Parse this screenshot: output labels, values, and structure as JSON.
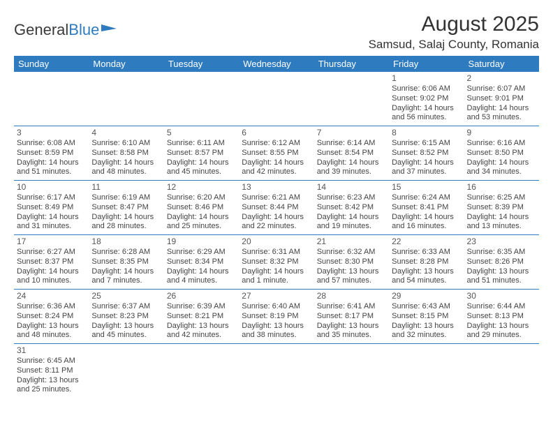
{
  "brand": {
    "part1": "General",
    "part2": "Blue"
  },
  "title": "August 2025",
  "location": "Samsud, Salaj County, Romania",
  "colors": {
    "header_bg": "#2f7bbf",
    "header_text": "#ffffff",
    "border": "#2f7bbf"
  },
  "day_headers": [
    "Sunday",
    "Monday",
    "Tuesday",
    "Wednesday",
    "Thursday",
    "Friday",
    "Saturday"
  ],
  "weeks": [
    [
      null,
      null,
      null,
      null,
      null,
      {
        "n": "1",
        "sunrise": "Sunrise: 6:06 AM",
        "sunset": "Sunset: 9:02 PM",
        "day1": "Daylight: 14 hours",
        "day2": "and 56 minutes."
      },
      {
        "n": "2",
        "sunrise": "Sunrise: 6:07 AM",
        "sunset": "Sunset: 9:01 PM",
        "day1": "Daylight: 14 hours",
        "day2": "and 53 minutes."
      }
    ],
    [
      {
        "n": "3",
        "sunrise": "Sunrise: 6:08 AM",
        "sunset": "Sunset: 8:59 PM",
        "day1": "Daylight: 14 hours",
        "day2": "and 51 minutes."
      },
      {
        "n": "4",
        "sunrise": "Sunrise: 6:10 AM",
        "sunset": "Sunset: 8:58 PM",
        "day1": "Daylight: 14 hours",
        "day2": "and 48 minutes."
      },
      {
        "n": "5",
        "sunrise": "Sunrise: 6:11 AM",
        "sunset": "Sunset: 8:57 PM",
        "day1": "Daylight: 14 hours",
        "day2": "and 45 minutes."
      },
      {
        "n": "6",
        "sunrise": "Sunrise: 6:12 AM",
        "sunset": "Sunset: 8:55 PM",
        "day1": "Daylight: 14 hours",
        "day2": "and 42 minutes."
      },
      {
        "n": "7",
        "sunrise": "Sunrise: 6:14 AM",
        "sunset": "Sunset: 8:54 PM",
        "day1": "Daylight: 14 hours",
        "day2": "and 39 minutes."
      },
      {
        "n": "8",
        "sunrise": "Sunrise: 6:15 AM",
        "sunset": "Sunset: 8:52 PM",
        "day1": "Daylight: 14 hours",
        "day2": "and 37 minutes."
      },
      {
        "n": "9",
        "sunrise": "Sunrise: 6:16 AM",
        "sunset": "Sunset: 8:50 PM",
        "day1": "Daylight: 14 hours",
        "day2": "and 34 minutes."
      }
    ],
    [
      {
        "n": "10",
        "sunrise": "Sunrise: 6:17 AM",
        "sunset": "Sunset: 8:49 PM",
        "day1": "Daylight: 14 hours",
        "day2": "and 31 minutes."
      },
      {
        "n": "11",
        "sunrise": "Sunrise: 6:19 AM",
        "sunset": "Sunset: 8:47 PM",
        "day1": "Daylight: 14 hours",
        "day2": "and 28 minutes."
      },
      {
        "n": "12",
        "sunrise": "Sunrise: 6:20 AM",
        "sunset": "Sunset: 8:46 PM",
        "day1": "Daylight: 14 hours",
        "day2": "and 25 minutes."
      },
      {
        "n": "13",
        "sunrise": "Sunrise: 6:21 AM",
        "sunset": "Sunset: 8:44 PM",
        "day1": "Daylight: 14 hours",
        "day2": "and 22 minutes."
      },
      {
        "n": "14",
        "sunrise": "Sunrise: 6:23 AM",
        "sunset": "Sunset: 8:42 PM",
        "day1": "Daylight: 14 hours",
        "day2": "and 19 minutes."
      },
      {
        "n": "15",
        "sunrise": "Sunrise: 6:24 AM",
        "sunset": "Sunset: 8:41 PM",
        "day1": "Daylight: 14 hours",
        "day2": "and 16 minutes."
      },
      {
        "n": "16",
        "sunrise": "Sunrise: 6:25 AM",
        "sunset": "Sunset: 8:39 PM",
        "day1": "Daylight: 14 hours",
        "day2": "and 13 minutes."
      }
    ],
    [
      {
        "n": "17",
        "sunrise": "Sunrise: 6:27 AM",
        "sunset": "Sunset: 8:37 PM",
        "day1": "Daylight: 14 hours",
        "day2": "and 10 minutes."
      },
      {
        "n": "18",
        "sunrise": "Sunrise: 6:28 AM",
        "sunset": "Sunset: 8:35 PM",
        "day1": "Daylight: 14 hours",
        "day2": "and 7 minutes."
      },
      {
        "n": "19",
        "sunrise": "Sunrise: 6:29 AM",
        "sunset": "Sunset: 8:34 PM",
        "day1": "Daylight: 14 hours",
        "day2": "and 4 minutes."
      },
      {
        "n": "20",
        "sunrise": "Sunrise: 6:31 AM",
        "sunset": "Sunset: 8:32 PM",
        "day1": "Daylight: 14 hours",
        "day2": "and 1 minute."
      },
      {
        "n": "21",
        "sunrise": "Sunrise: 6:32 AM",
        "sunset": "Sunset: 8:30 PM",
        "day1": "Daylight: 13 hours",
        "day2": "and 57 minutes."
      },
      {
        "n": "22",
        "sunrise": "Sunrise: 6:33 AM",
        "sunset": "Sunset: 8:28 PM",
        "day1": "Daylight: 13 hours",
        "day2": "and 54 minutes."
      },
      {
        "n": "23",
        "sunrise": "Sunrise: 6:35 AM",
        "sunset": "Sunset: 8:26 PM",
        "day1": "Daylight: 13 hours",
        "day2": "and 51 minutes."
      }
    ],
    [
      {
        "n": "24",
        "sunrise": "Sunrise: 6:36 AM",
        "sunset": "Sunset: 8:24 PM",
        "day1": "Daylight: 13 hours",
        "day2": "and 48 minutes."
      },
      {
        "n": "25",
        "sunrise": "Sunrise: 6:37 AM",
        "sunset": "Sunset: 8:23 PM",
        "day1": "Daylight: 13 hours",
        "day2": "and 45 minutes."
      },
      {
        "n": "26",
        "sunrise": "Sunrise: 6:39 AM",
        "sunset": "Sunset: 8:21 PM",
        "day1": "Daylight: 13 hours",
        "day2": "and 42 minutes."
      },
      {
        "n": "27",
        "sunrise": "Sunrise: 6:40 AM",
        "sunset": "Sunset: 8:19 PM",
        "day1": "Daylight: 13 hours",
        "day2": "and 38 minutes."
      },
      {
        "n": "28",
        "sunrise": "Sunrise: 6:41 AM",
        "sunset": "Sunset: 8:17 PM",
        "day1": "Daylight: 13 hours",
        "day2": "and 35 minutes."
      },
      {
        "n": "29",
        "sunrise": "Sunrise: 6:43 AM",
        "sunset": "Sunset: 8:15 PM",
        "day1": "Daylight: 13 hours",
        "day2": "and 32 minutes."
      },
      {
        "n": "30",
        "sunrise": "Sunrise: 6:44 AM",
        "sunset": "Sunset: 8:13 PM",
        "day1": "Daylight: 13 hours",
        "day2": "and 29 minutes."
      }
    ],
    [
      {
        "n": "31",
        "sunrise": "Sunrise: 6:45 AM",
        "sunset": "Sunset: 8:11 PM",
        "day1": "Daylight: 13 hours",
        "day2": "and 25 minutes."
      },
      null,
      null,
      null,
      null,
      null,
      null
    ]
  ]
}
